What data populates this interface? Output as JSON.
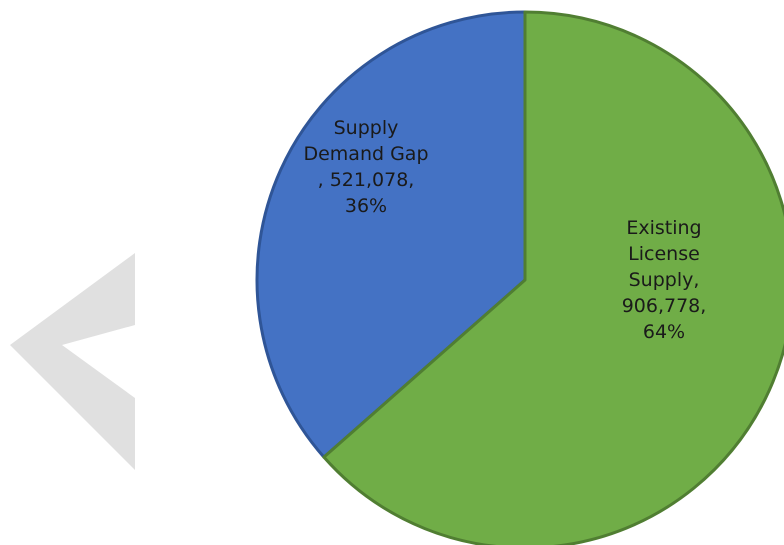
{
  "colors": {
    "supply_demand_gap": "#4472C4",
    "existing_license_supply": "#70AD47",
    "chevron": "#e0e0e0"
  },
  "icons": {
    "back": "chevron-left-icon"
  },
  "chart_data": {
    "type": "pie",
    "title": "",
    "slices": [
      {
        "name": "Supply Demand Gap",
        "value": 521078,
        "percent": 36,
        "color": "#4472C4",
        "label_lines": [
          "Supply",
          "Demand Gap",
          ", 521,078,",
          "36%"
        ]
      },
      {
        "name": "Existing License Supply",
        "value": 906778,
        "percent": 64,
        "color": "#70AD47",
        "label_lines": [
          "Existing",
          "License",
          "Supply,",
          "906,778,",
          "64%"
        ]
      }
    ]
  }
}
